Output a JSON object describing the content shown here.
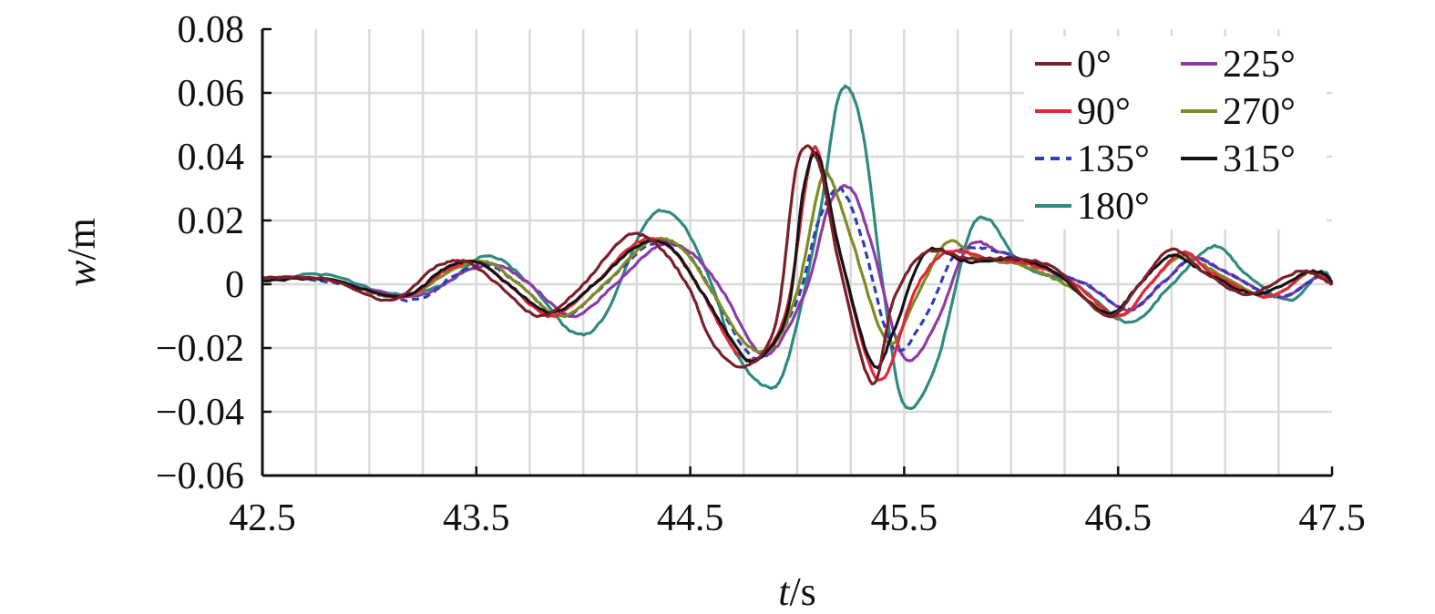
{
  "chart_data": {
    "type": "line",
    "xlabel_italic": "t",
    "xlabel_unit": "/s",
    "ylabel_italic": "w",
    "ylabel_unit": "/m",
    "xlim": [
      42.5,
      47.5
    ],
    "ylim": [
      -0.06,
      0.08
    ],
    "xticks": [
      42.5,
      43.5,
      44.5,
      45.5,
      46.5,
      47.5
    ],
    "xtick_labels": [
      "42.5",
      "43.5",
      "44.5",
      "45.5",
      "46.5",
      "47.5"
    ],
    "yticks": [
      -0.06,
      -0.04,
      -0.02,
      0,
      0.02,
      0.04,
      0.06,
      0.08
    ],
    "ytick_labels": [
      "−0.06",
      "−0.04",
      "−0.02",
      "0",
      "0.02",
      "0.04",
      "0.06",
      "0.08"
    ],
    "grid": true,
    "legend_position": "top-right",
    "series": [
      {
        "name": "0°",
        "color": "#7b1f2a",
        "dash": false,
        "t0": 42.5,
        "points": [
          [
            42.5,
            0.002
          ],
          [
            42.8,
            0.0015
          ],
          [
            43.1,
            -0.005
          ],
          [
            43.3,
            0.005
          ],
          [
            43.45,
            0.007
          ],
          [
            43.6,
            0.0
          ],
          [
            43.8,
            -0.01
          ],
          [
            44.0,
            0.0
          ],
          [
            44.2,
            0.015
          ],
          [
            44.35,
            0.012
          ],
          [
            44.5,
            -0.002
          ],
          [
            44.6,
            -0.018
          ],
          [
            44.75,
            -0.026
          ],
          [
            44.9,
            -0.012
          ],
          [
            45.0,
            0.038
          ],
          [
            45.1,
            0.038
          ],
          [
            45.2,
            0.005
          ],
          [
            45.35,
            -0.031
          ],
          [
            45.45,
            -0.005
          ],
          [
            45.6,
            0.01
          ],
          [
            45.8,
            0.008
          ],
          [
            46.0,
            0.008
          ],
          [
            46.2,
            0.005
          ],
          [
            46.45,
            -0.01
          ],
          [
            46.6,
            0.0
          ],
          [
            46.75,
            0.011
          ],
          [
            46.9,
            0.004
          ],
          [
            47.1,
            -0.003
          ],
          [
            47.35,
            0.004
          ],
          [
            47.5,
            0.0
          ]
        ]
      },
      {
        "name": "90°",
        "color": "#e0283a",
        "dash": false,
        "t0": 42.5,
        "points": [
          [
            42.5,
            0.002
          ],
          [
            42.8,
            0.0015
          ],
          [
            43.15,
            -0.004
          ],
          [
            43.35,
            0.004
          ],
          [
            43.5,
            0.007
          ],
          [
            43.65,
            0.0
          ],
          [
            43.85,
            -0.01
          ],
          [
            44.05,
            0.0
          ],
          [
            44.25,
            0.013
          ],
          [
            44.4,
            0.012
          ],
          [
            44.55,
            -0.002
          ],
          [
            44.7,
            -0.02
          ],
          [
            44.82,
            -0.023
          ],
          [
            44.95,
            -0.008
          ],
          [
            45.05,
            0.035
          ],
          [
            45.1,
            0.041
          ],
          [
            45.2,
            0.01
          ],
          [
            45.38,
            -0.03
          ],
          [
            45.55,
            -0.002
          ],
          [
            45.7,
            0.01
          ],
          [
            45.9,
            0.008
          ],
          [
            46.1,
            0.006
          ],
          [
            46.3,
            0.0
          ],
          [
            46.5,
            -0.01
          ],
          [
            46.65,
            0.0
          ],
          [
            46.8,
            0.01
          ],
          [
            46.95,
            0.003
          ],
          [
            47.2,
            -0.004
          ],
          [
            47.4,
            0.004
          ],
          [
            47.5,
            0.0
          ]
        ]
      },
      {
        "name": "135°",
        "color": "#2f3fb0",
        "dash": true,
        "t0": 42.5,
        "points": [
          [
            42.5,
            0.002
          ],
          [
            42.8,
            0.001
          ],
          [
            43.2,
            -0.005
          ],
          [
            43.4,
            0.003
          ],
          [
            43.55,
            0.006
          ],
          [
            43.7,
            0.0
          ],
          [
            43.9,
            -0.01
          ],
          [
            44.1,
            0.0
          ],
          [
            44.3,
            0.012
          ],
          [
            44.45,
            0.012
          ],
          [
            44.6,
            -0.002
          ],
          [
            44.75,
            -0.02
          ],
          [
            44.85,
            -0.022
          ],
          [
            45.0,
            -0.005
          ],
          [
            45.1,
            0.02
          ],
          [
            45.2,
            0.03
          ],
          [
            45.3,
            0.015
          ],
          [
            45.45,
            -0.02
          ],
          [
            45.6,
            -0.01
          ],
          [
            45.75,
            0.01
          ],
          [
            45.95,
            0.01
          ],
          [
            46.15,
            0.005
          ],
          [
            46.35,
            0.0
          ],
          [
            46.55,
            -0.008
          ],
          [
            46.7,
            0.0
          ],
          [
            46.85,
            0.008
          ],
          [
            47.0,
            0.004
          ],
          [
            47.25,
            -0.004
          ],
          [
            47.45,
            0.003
          ],
          [
            47.5,
            0.0
          ]
        ]
      },
      {
        "name": "180°",
        "color": "#2e8a80",
        "dash": false,
        "t0": 42.5,
        "points": [
          [
            42.5,
            0.001
          ],
          [
            42.8,
            0.003
          ],
          [
            43.1,
            -0.003
          ],
          [
            43.35,
            0.0
          ],
          [
            43.55,
            0.009
          ],
          [
            43.75,
            0.0
          ],
          [
            43.95,
            -0.015
          ],
          [
            44.1,
            -0.01
          ],
          [
            44.3,
            0.02
          ],
          [
            44.45,
            0.02
          ],
          [
            44.6,
            0.0
          ],
          [
            44.7,
            -0.02
          ],
          [
            44.85,
            -0.032
          ],
          [
            44.95,
            -0.025
          ],
          [
            45.1,
            0.02
          ],
          [
            45.2,
            0.06
          ],
          [
            45.3,
            0.05
          ],
          [
            45.4,
            0.0
          ],
          [
            45.5,
            -0.038
          ],
          [
            45.65,
            -0.025
          ],
          [
            45.8,
            0.015
          ],
          [
            45.9,
            0.02
          ],
          [
            46.05,
            0.006
          ],
          [
            46.3,
            0.0
          ],
          [
            46.55,
            -0.012
          ],
          [
            46.75,
            0.0
          ],
          [
            46.95,
            0.012
          ],
          [
            47.1,
            0.003
          ],
          [
            47.3,
            -0.005
          ],
          [
            47.45,
            0.004
          ],
          [
            47.5,
            0.0
          ]
        ]
      },
      {
        "name": "225°",
        "color": "#8e3aa6",
        "dash": false,
        "t0": 42.5,
        "points": [
          [
            42.5,
            0.002
          ],
          [
            42.8,
            0.0015
          ],
          [
            43.2,
            -0.004
          ],
          [
            43.45,
            0.004
          ],
          [
            43.6,
            0.006
          ],
          [
            43.75,
            0.0
          ],
          [
            43.95,
            -0.01
          ],
          [
            44.15,
            0.0
          ],
          [
            44.35,
            0.012
          ],
          [
            44.5,
            0.01
          ],
          [
            44.65,
            -0.002
          ],
          [
            44.8,
            -0.02
          ],
          [
            44.9,
            -0.02
          ],
          [
            45.05,
            0.0
          ],
          [
            45.15,
            0.025
          ],
          [
            45.25,
            0.03
          ],
          [
            45.35,
            0.012
          ],
          [
            45.5,
            -0.023
          ],
          [
            45.65,
            -0.012
          ],
          [
            45.8,
            0.012
          ],
          [
            45.95,
            0.01
          ],
          [
            46.15,
            0.005
          ],
          [
            46.35,
            0.0
          ],
          [
            46.55,
            -0.008
          ],
          [
            46.7,
            0.0
          ],
          [
            46.85,
            0.008
          ],
          [
            47.0,
            0.004
          ],
          [
            47.25,
            -0.004
          ],
          [
            47.45,
            0.003
          ],
          [
            47.5,
            0.0
          ]
        ]
      },
      {
        "name": "270°",
        "color": "#7f8a22",
        "dash": false,
        "t0": 42.5,
        "points": [
          [
            42.5,
            0.002
          ],
          [
            42.8,
            0.0015
          ],
          [
            43.15,
            -0.004
          ],
          [
            43.4,
            0.005
          ],
          [
            43.55,
            0.007
          ],
          [
            43.7,
            0.0
          ],
          [
            43.9,
            -0.01
          ],
          [
            44.1,
            0.0
          ],
          [
            44.3,
            0.013
          ],
          [
            44.45,
            0.012
          ],
          [
            44.6,
            -0.002
          ],
          [
            44.75,
            -0.018
          ],
          [
            44.88,
            -0.02
          ],
          [
            45.0,
            -0.002
          ],
          [
            45.1,
            0.03
          ],
          [
            45.15,
            0.034
          ],
          [
            45.25,
            0.015
          ],
          [
            45.42,
            -0.018
          ],
          [
            45.55,
            -0.005
          ],
          [
            45.7,
            0.013
          ],
          [
            45.85,
            0.008
          ],
          [
            46.05,
            0.006
          ],
          [
            46.25,
            0.0
          ],
          [
            46.5,
            -0.01
          ],
          [
            46.65,
            0.0
          ],
          [
            46.8,
            0.009
          ],
          [
            46.95,
            0.004
          ],
          [
            47.2,
            -0.004
          ],
          [
            47.4,
            0.004
          ],
          [
            47.5,
            0.0
          ]
        ]
      },
      {
        "name": "315°",
        "color": "#141414",
        "dash": false,
        "t0": 42.5,
        "points": [
          [
            42.5,
            0.001
          ],
          [
            42.8,
            0.0015
          ],
          [
            43.15,
            -0.004
          ],
          [
            43.35,
            0.005
          ],
          [
            43.5,
            0.007
          ],
          [
            43.65,
            0.0
          ],
          [
            43.85,
            -0.009
          ],
          [
            44.05,
            0.0
          ],
          [
            44.25,
            0.012
          ],
          [
            44.4,
            0.012
          ],
          [
            44.55,
            -0.002
          ],
          [
            44.7,
            -0.018
          ],
          [
            44.8,
            -0.024
          ],
          [
            44.95,
            -0.01
          ],
          [
            45.03,
            0.03
          ],
          [
            45.1,
            0.04
          ],
          [
            45.2,
            0.01
          ],
          [
            45.35,
            -0.025
          ],
          [
            45.45,
            -0.015
          ],
          [
            45.6,
            0.01
          ],
          [
            45.8,
            0.007
          ],
          [
            46.0,
            0.008
          ],
          [
            46.2,
            0.004
          ],
          [
            46.45,
            -0.009
          ],
          [
            46.6,
            0.0
          ],
          [
            46.75,
            0.009
          ],
          [
            46.9,
            0.004
          ],
          [
            47.15,
            -0.003
          ],
          [
            47.4,
            0.004
          ],
          [
            47.5,
            0.001
          ]
        ]
      }
    ]
  }
}
